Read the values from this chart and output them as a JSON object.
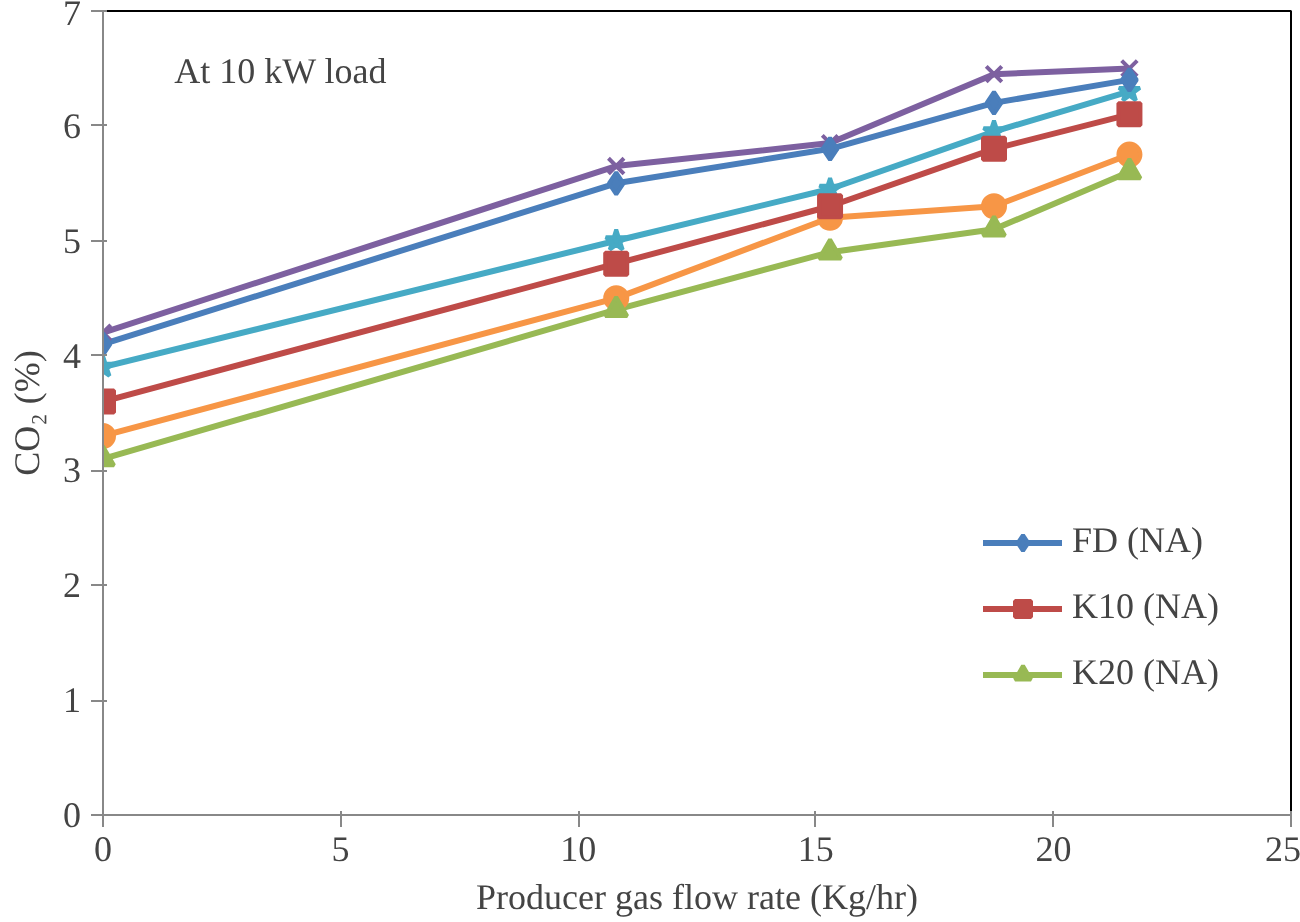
{
  "chart_data": {
    "type": "line",
    "xlabel": "Producer gas flow rate (Kg/hr)",
    "ylabel": "CO₂ (%)",
    "annotations": [
      "At  10 kW load"
    ],
    "x": [
      0,
      10.8,
      15.3,
      18.75,
      21.6
    ],
    "xlim": [
      0,
      25
    ],
    "xticks": [
      0,
      5,
      10,
      15,
      20,
      25
    ],
    "ylim": [
      0,
      7
    ],
    "yticks": [
      0,
      1,
      2,
      3,
      4,
      5,
      6,
      7
    ],
    "grid": false,
    "legend": "right",
    "series": [
      {
        "name": "FD (NA)",
        "color": "#4a7ebb",
        "marker": "diamond",
        "values": [
          4.1,
          5.5,
          5.8,
          6.2,
          6.4
        ]
      },
      {
        "name": "K10 (NA)",
        "color": "#be4b48",
        "marker": "square",
        "values": [
          3.6,
          4.8,
          5.3,
          5.8,
          6.1
        ]
      },
      {
        "name": "K20 (NA)",
        "color": "#98b954",
        "marker": "triangle",
        "values": [
          3.1,
          4.4,
          4.9,
          5.1,
          5.6
        ]
      },
      {
        "color": "#7d60a0",
        "marker": "cross",
        "values": [
          4.2,
          5.65,
          5.85,
          6.45,
          6.5
        ]
      },
      {
        "color": "#46aac5",
        "marker": "star",
        "values": [
          3.9,
          5.0,
          5.45,
          5.95,
          6.3
        ]
      },
      {
        "color": "#f79646",
        "marker": "circle",
        "values": [
          3.3,
          4.5,
          5.2,
          5.3,
          5.75
        ]
      }
    ]
  }
}
